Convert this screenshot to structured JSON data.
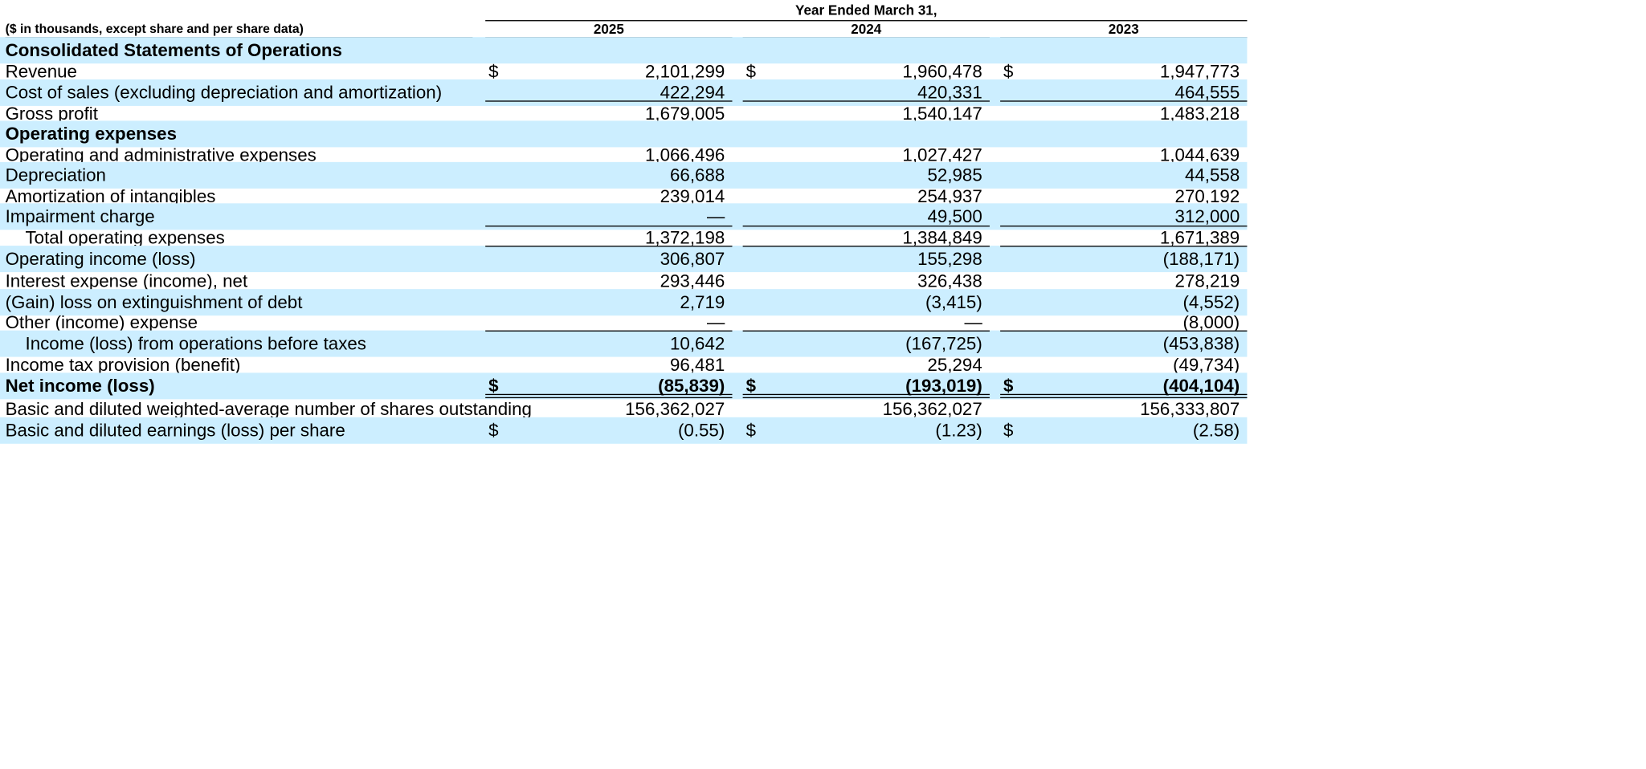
{
  "header": {
    "units_note": "($ in thousands, except share and per share data)",
    "period_title": "Year Ended March 31,",
    "years": [
      "2025",
      "2024",
      "2023"
    ]
  },
  "rows": [
    {
      "label": "Consolidated Statements of Operations",
      "style": "section",
      "values": [
        "",
        "",
        ""
      ]
    },
    {
      "label": "Revenue",
      "style": "normal",
      "currency": true,
      "values": [
        "2,101,299",
        "1,960,478",
        "1,947,773"
      ]
    },
    {
      "label": "Cost of sales (excluding depreciation and amortization)",
      "style": "normal",
      "values": [
        "422,294",
        "420,331",
        "464,555"
      ]
    },
    {
      "label": "Gross profit",
      "style": "normal",
      "values": [
        "1,679,005",
        "1,540,147",
        "1,483,218"
      ]
    },
    {
      "label": "Operating expenses",
      "style": "section",
      "values": [
        "",
        "",
        ""
      ]
    },
    {
      "label": "Operating and administrative expenses",
      "style": "normal",
      "values": [
        "1,066,496",
        "1,027,427",
        "1,044,639"
      ]
    },
    {
      "label": "Depreciation",
      "style": "normal",
      "values": [
        "66,688",
        "52,985",
        "44,558"
      ]
    },
    {
      "label": "Amortization of intangibles",
      "style": "normal",
      "values": [
        "239,014",
        "254,937",
        "270,192"
      ]
    },
    {
      "label": "Impairment charge",
      "style": "normal",
      "values": [
        "—",
        "49,500",
        "312,000"
      ]
    },
    {
      "label": "Total operating expenses",
      "style": "indent",
      "values": [
        "1,372,198",
        "1,384,849",
        "1,671,389"
      ]
    },
    {
      "label": "Operating income (loss)",
      "style": "normal",
      "values": [
        "306,807",
        "155,298",
        "(188,171)"
      ]
    },
    {
      "label": "Interest expense (income), net",
      "style": "normal",
      "values": [
        "293,446",
        "326,438",
        "278,219"
      ]
    },
    {
      "label": "(Gain) loss on extinguishment of debt",
      "style": "normal",
      "values": [
        "2,719",
        "(3,415)",
        "(4,552)"
      ]
    },
    {
      "label": "Other (income) expense",
      "style": "normal",
      "values": [
        "—",
        "—",
        "(8,000)"
      ]
    },
    {
      "label": "Income (loss) from operations before taxes",
      "style": "indent",
      "values": [
        "10,642",
        "(167,725)",
        "(453,838)"
      ]
    },
    {
      "label": "Income tax provision (benefit)",
      "style": "normal",
      "values": [
        "96,481",
        "25,294",
        "(49,734)"
      ]
    },
    {
      "label": "Net income (loss)",
      "style": "bold",
      "currency": true,
      "values": [
        "(85,839)",
        "(193,019)",
        "(404,104)"
      ]
    },
    {
      "label": "Basic and diluted weighted-average number of shares outstanding",
      "style": "normal",
      "values": [
        "156,362,027",
        "156,362,027",
        "156,333,807"
      ]
    },
    {
      "label": "Basic and diluted earnings (loss) per share",
      "style": "normal",
      "currency": true,
      "values": [
        "(0.55)",
        "(1.23)",
        "(2.58)"
      ]
    }
  ],
  "currency_symbol": "$",
  "colors": {
    "band": "#cceeff",
    "text": "#000000",
    "rule": "#000000"
  }
}
